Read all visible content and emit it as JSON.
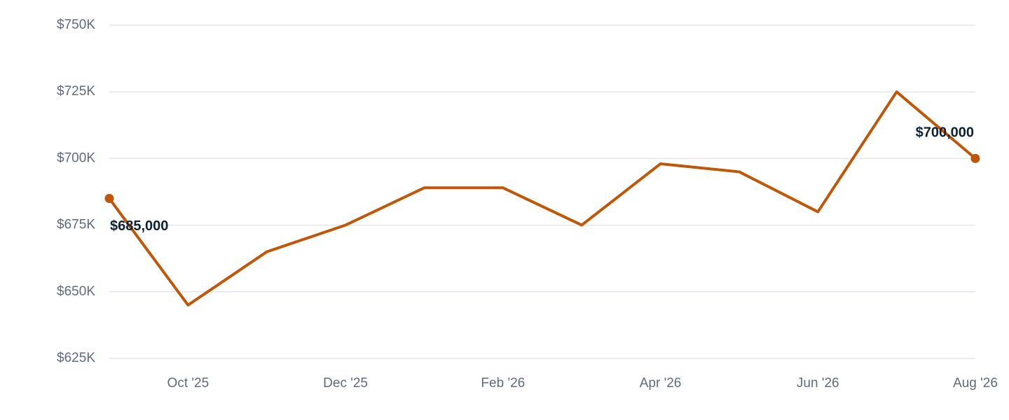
{
  "chart_data": {
    "type": "line",
    "categories": [
      null,
      "Oct '25",
      null,
      "Dec '25",
      null,
      "Feb '26",
      null,
      "Apr '26",
      null,
      "Jun '26",
      null,
      "Aug '26"
    ],
    "series": [
      {
        "color": "#bf5708",
        "values": [
          685000,
          645000,
          665000,
          675000,
          689000,
          689000,
          675000,
          698000,
          695000,
          680000,
          725000,
          700000
        ],
        "value_labels": [
          "$685,000",
          null,
          null,
          null,
          null,
          null,
          null,
          null,
          null,
          null,
          null,
          "$700,000"
        ]
      }
    ],
    "ylim": [
      625000,
      750000
    ],
    "yticks": [
      {
        "value": 625000,
        "label": "$625K"
      },
      {
        "value": 650000,
        "label": "$650K"
      },
      {
        "value": 675000,
        "label": "$675K"
      },
      {
        "value": 700000,
        "label": "$700K"
      },
      {
        "value": 725000,
        "label": "$725K"
      },
      {
        "value": 750000,
        "label": "$750K"
      }
    ],
    "grid": true
  }
}
